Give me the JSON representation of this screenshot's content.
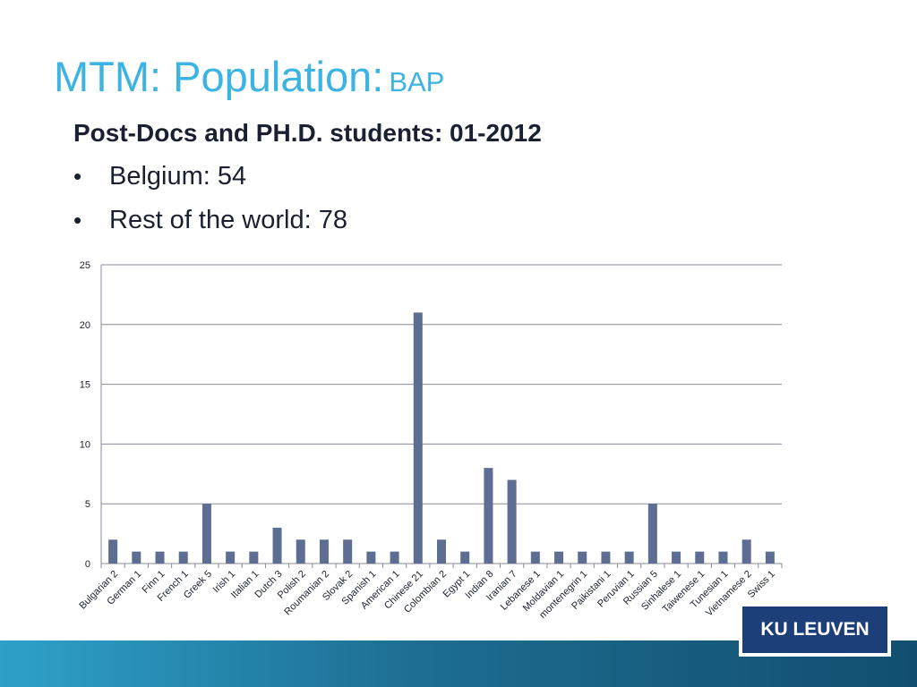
{
  "slide": {
    "title": "MTM: Population:",
    "title_suffix": "BAP",
    "heading": "Post-Docs and PH.D. students: 01-2012",
    "bullets": [
      {
        "marker": "•",
        "text": "Belgium: 54"
      },
      {
        "marker": "•",
        "text": "Rest of the world: 78"
      }
    ],
    "logo_text": "KU LEUVEN"
  },
  "colors": {
    "title": "#3bb3e3",
    "bar": "#5e6d92",
    "gridline": "#8a8a9a",
    "text": "#1b2030",
    "logo_bg": "#1c3f7a"
  },
  "chart_data": {
    "type": "bar",
    "categories": [
      "Bulgarian 2",
      "German 1",
      "Finn 1",
      "French 1",
      "Greek 5",
      "Irish 1",
      "Italian 1",
      "Dutch 3",
      "Polish 2",
      "Roumanian 2",
      "Slovak 2",
      "Spanish 1",
      "American 1",
      "Chinese 21",
      "Colombian 2",
      "Egypt 1",
      "Indian 8",
      "Iranian 7",
      "Lebanese 1",
      "Moldavian 1",
      "montenegrin 1",
      "Paikistani 1",
      "Peruvian 1",
      "Russian 5",
      "Sinhalese 1",
      "Taiwenese 1",
      "Tunesian 1",
      "Vietnamese 2",
      "Swiss 1"
    ],
    "values": [
      2,
      1,
      1,
      1,
      5,
      1,
      1,
      3,
      2,
      2,
      2,
      1,
      1,
      21,
      2,
      1,
      8,
      7,
      1,
      1,
      1,
      1,
      1,
      5,
      1,
      1,
      1,
      2,
      1
    ],
    "ylim": [
      0,
      25
    ],
    "yticks": [
      0,
      5,
      10,
      15,
      20,
      25
    ],
    "grid": true,
    "legend": "none",
    "title": "",
    "xlabel": "",
    "ylabel": ""
  }
}
